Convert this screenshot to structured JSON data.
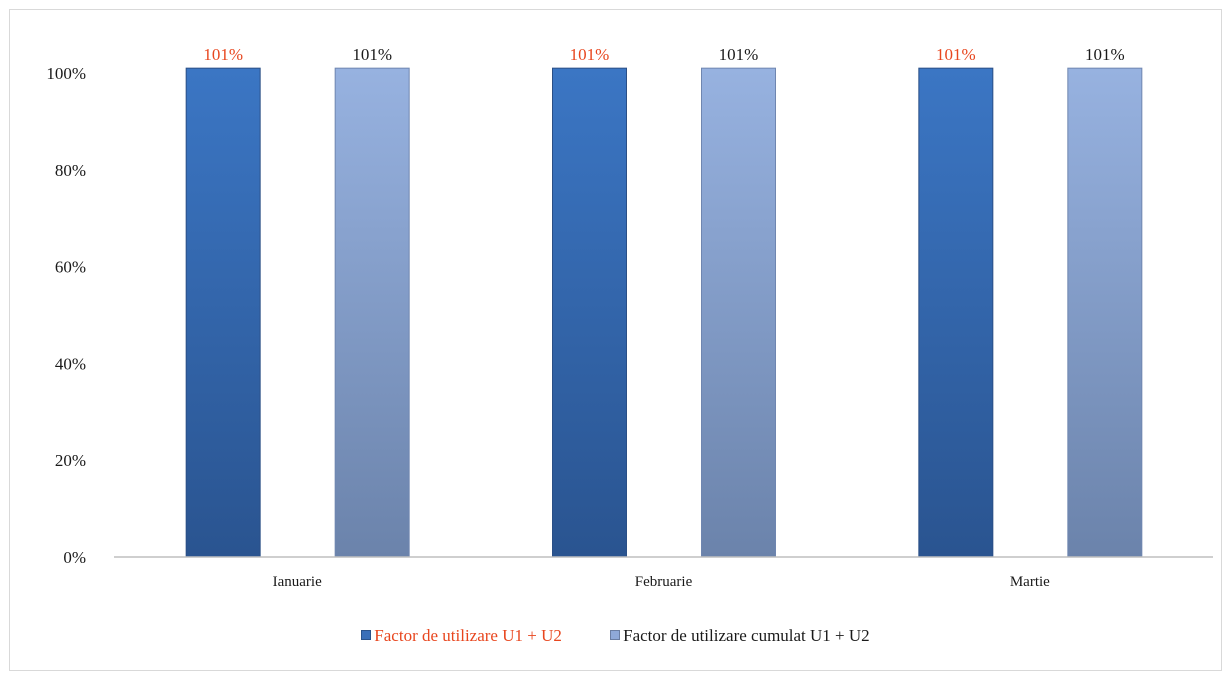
{
  "chart_data": {
    "type": "bar",
    "categories": [
      "Ianuarie",
      "Februarie",
      "Martie"
    ],
    "series": [
      {
        "name": "Factor de utilizare U1 + U2",
        "values": [
          101,
          101,
          101
        ],
        "data_labels": [
          "101%",
          "101%",
          "101%"
        ],
        "color": "#3a6fb8",
        "label_color": "#e8461e"
      },
      {
        "name": "Factor de utilizare cumulat U1 + U2",
        "values": [
          101,
          101,
          101
        ],
        "data_labels": [
          "101%",
          "101%",
          "101%"
        ],
        "color": "#8fa9d8",
        "label_color": "#1a1a1a"
      }
    ],
    "y_ticks": [
      "0%",
      "20%",
      "40%",
      "60%",
      "80%",
      "100%"
    ],
    "ylim": [
      0,
      100
    ],
    "grid": false,
    "legend_position": "bottom",
    "title": "",
    "xlabel": "",
    "ylabel": ""
  }
}
